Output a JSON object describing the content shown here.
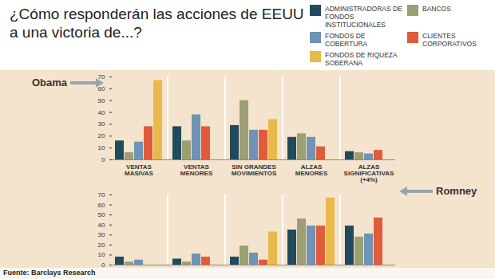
{
  "title": "¿Cómo responderán las acciones de EEUU a una victoria de...?",
  "source": "Fuente: Barclays Research",
  "chart_data": [
    {
      "type": "bar",
      "title": "Obama",
      "categories": [
        "VENTAS MASIVAS",
        "VENTAS MENORES",
        "SIN GRANDES MOVIMIENTOS",
        "ALZAS MENORES",
        "ALZAS SIGNIFICATIVAS (+4%)"
      ],
      "series": [
        {
          "name": "ADMINISTRADORAS DE FONDOS INSTITUCIONALES",
          "color": "#1f4b5c",
          "values": [
            16,
            28,
            29,
            19,
            7
          ]
        },
        {
          "name": "BANCOS",
          "color": "#9c9f74",
          "values": [
            6,
            16,
            50,
            22,
            6
          ]
        },
        {
          "name": "FONDOS DE COBERTURA",
          "color": "#6f93b4",
          "values": [
            15,
            38,
            25,
            19,
            5
          ]
        },
        {
          "name": "CLIENTES CORPORATIVOS",
          "color": "#e05b3b",
          "values": [
            28,
            28,
            25,
            11,
            8
          ]
        },
        {
          "name": "FONDOS DE RIQUEZA SOBERANA",
          "color": "#e9b94b",
          "values": [
            67,
            0,
            34,
            0,
            0
          ]
        }
      ],
      "ylim": [
        0,
        70
      ],
      "yticks": [
        0,
        10,
        20,
        30,
        40,
        50,
        60,
        70
      ],
      "grid": false,
      "legend": "top"
    },
    {
      "type": "bar",
      "title": "Romney",
      "categories": [
        "VENTAS MASIVAS",
        "VENTAS MENORES",
        "SIN GRANDES MOVIMIENTOS",
        "ALZAS MENORES",
        "ALZAS SIGNIFICATIVAS (+4%)"
      ],
      "series": [
        {
          "name": "ADMINISTRADORAS DE FONDOS INSTITUCIONALES",
          "color": "#1f4b5c",
          "values": [
            8,
            6,
            8,
            35,
            39
          ]
        },
        {
          "name": "BANCOS",
          "color": "#9c9f74",
          "values": [
            3,
            3,
            19,
            46,
            28
          ]
        },
        {
          "name": "FONDOS DE COBERTURA",
          "color": "#6f93b4",
          "values": [
            5,
            11,
            12,
            39,
            31
          ]
        },
        {
          "name": "CLIENTES CORPORATIVOS",
          "color": "#e05b3b",
          "values": [
            0,
            8,
            5,
            39,
            47
          ]
        },
        {
          "name": "FONDOS DE RIQUEZA SOBERANA",
          "color": "#e9b94b",
          "values": [
            0,
            0,
            33,
            67,
            0
          ]
        }
      ],
      "ylim": [
        0,
        70
      ],
      "yticks": [
        0,
        10,
        20,
        30,
        40,
        50,
        60,
        70
      ],
      "grid": false,
      "tick_labels": "y"
    }
  ]
}
